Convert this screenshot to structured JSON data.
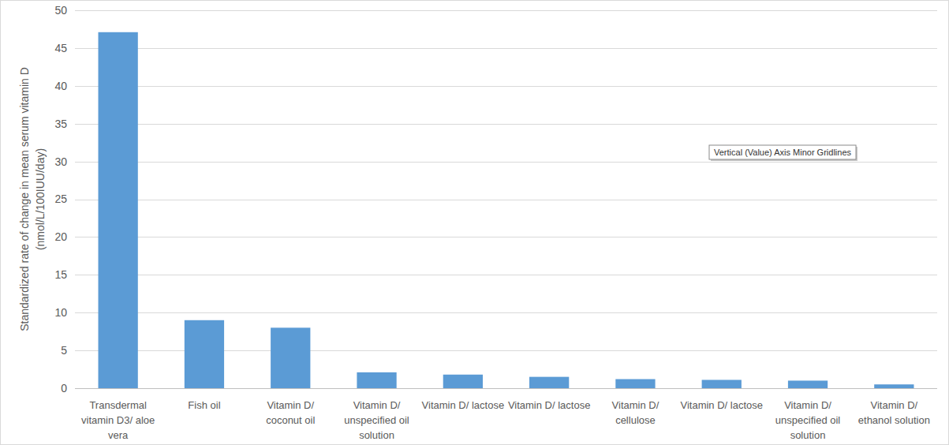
{
  "chart_data": {
    "type": "bar",
    "ylabel": [
      "Standardized rate of change in mean serum vitamin D",
      "(nmol/L/100IUU/day)"
    ],
    "categories": [
      "Transdermal vitamin D3/ aloe vera",
      "Fish oil",
      "Vitamin D/ coconut oil",
      "Vitamin D/ unspecified oil solution",
      "Vitamin D/ lactose",
      "Vitamin D/ lactose",
      "Vitamin D/ cellulose",
      "Vitamin D/ lactose",
      "Vitamin D/ unspecified oil solution",
      "Vitamin D/ ethanol solution"
    ],
    "values": [
      47.1,
      9.0,
      8.0,
      2.1,
      1.8,
      1.5,
      1.2,
      1.1,
      1.0,
      0.5
    ],
    "color": "#5b9bd5",
    "ylim": [
      0,
      50
    ],
    "yticks": [
      0,
      5,
      10,
      15,
      20,
      25,
      30,
      35,
      40,
      45,
      50
    ],
    "grid": true,
    "annotation": "Vertical (Value) Axis Minor Gridlines"
  }
}
